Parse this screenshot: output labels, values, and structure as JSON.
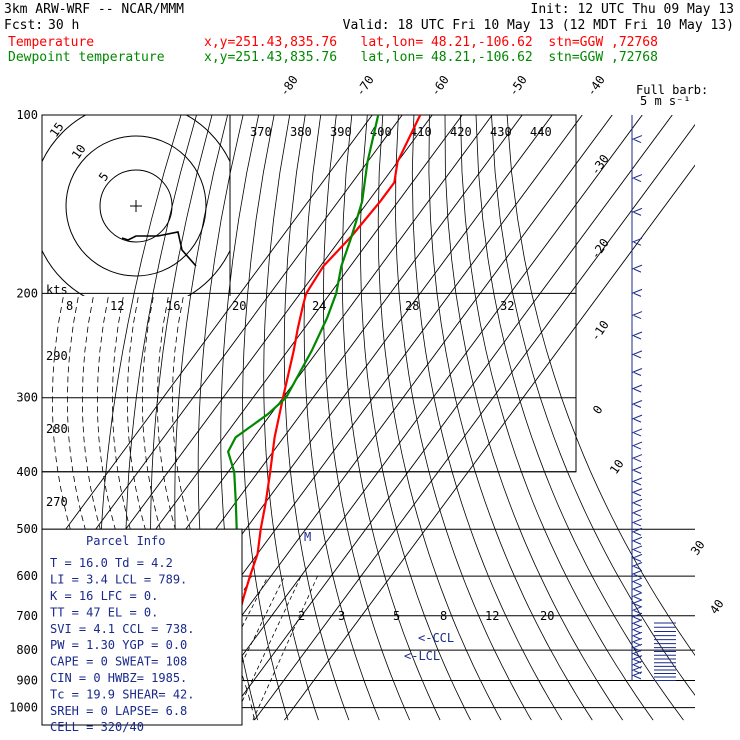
{
  "header": {
    "model": "3km ARW-WRF -- NCAR/MMM",
    "init": "Init: 12 UTC Thu 09 May 13",
    "fcst_label": "Fcst:",
    "fcst_value": "30 h",
    "valid": "Valid: 18 UTC Fri 10 May 13 (12 MDT Fri 10 May 13)",
    "temp_label": "Temperature",
    "temp_info": "x,y=251.43,835.76   lat,lon= 48.21,-106.62  stn=GGW ,72768",
    "dew_label": "Dewpoint temperature",
    "dew_info": "x,y=251.43,835.76   lat,lon= 48.21,-106.62  stn=GGW ,72768"
  },
  "colors": {
    "temperature": "#ff0000",
    "dewpoint": "#008800",
    "wind": "#1a2a8c",
    "parcel": "#1a2a8c"
  },
  "chart_data": {
    "type": "line",
    "title": "",
    "yscale": "log-pressure",
    "ylabel": "",
    "pressure_levels": [
      "100",
      "200",
      "300",
      "400",
      "500",
      "600",
      "700",
      "800",
      "900",
      "1000"
    ],
    "pressure_ticks": [
      100,
      200,
      300,
      400,
      500,
      600,
      700,
      800,
      900,
      1000
    ],
    "isotherms": [
      -80,
      -70,
      -60,
      -50,
      -40,
      -30,
      -20,
      -10,
      0,
      10,
      20,
      30,
      40
    ],
    "isotherm_labels": [
      "-80",
      "-70",
      "-60",
      "-50",
      "-40",
      "-30",
      "-20",
      "-10",
      "0",
      "10",
      "30",
      "40"
    ],
    "theta_labels_top": [
      "370",
      "380",
      "390",
      "400",
      "410",
      "420",
      "430",
      "440"
    ],
    "theta_labels_left": [
      "290",
      "280",
      "270"
    ],
    "mixing_ratio_labels": [
      "2",
      "3",
      "5",
      "8",
      "12",
      "20"
    ],
    "hodograph_speed_labels": [
      "8",
      "12",
      "16",
      "20",
      "24",
      "28",
      "32"
    ],
    "hodograph_unit": "kts",
    "hodograph_rings": [
      "5",
      "10",
      "15"
    ],
    "wind_barb_legend": "Full barb:\n5 m s⁻¹",
    "series": [
      {
        "name": "Temperature",
        "points": [
          [
            916,
            16.0
          ],
          [
            900,
            13
          ],
          [
            870,
            6
          ],
          [
            820,
            3
          ],
          [
            800,
            2.5
          ],
          [
            750,
            1.5
          ],
          [
            700,
            -1
          ],
          [
            650,
            -4
          ],
          [
            600,
            -7
          ],
          [
            550,
            -10
          ],
          [
            500,
            -15
          ],
          [
            450,
            -20
          ],
          [
            400,
            -26
          ],
          [
            350,
            -33
          ],
          [
            300,
            -40
          ],
          [
            250,
            -48
          ],
          [
            230,
            -52
          ],
          [
            210,
            -56
          ],
          [
            200,
            -58
          ],
          [
            180,
            -59
          ],
          [
            160,
            -57
          ],
          [
            140,
            -56
          ],
          [
            130,
            -56
          ],
          [
            120,
            -60
          ],
          [
            100,
            -64
          ]
        ]
      },
      {
        "name": "Dewpoint temperature",
        "points": [
          [
            916,
            4.2
          ],
          [
            900,
            3
          ],
          [
            870,
            1
          ],
          [
            840,
            -2
          ],
          [
            800,
            -5
          ],
          [
            750,
            -7
          ],
          [
            700,
            -10
          ],
          [
            650,
            -13
          ],
          [
            600,
            -16
          ],
          [
            550,
            -19
          ],
          [
            500,
            -23
          ],
          [
            450,
            -30
          ],
          [
            400,
            -38
          ],
          [
            370,
            -45
          ],
          [
            350,
            -46
          ],
          [
            320,
            -41
          ],
          [
            300,
            -39
          ],
          [
            250,
            -42
          ],
          [
            220,
            -45
          ],
          [
            200,
            -48
          ],
          [
            180,
            -53
          ],
          [
            160,
            -57
          ],
          [
            140,
            -62
          ],
          [
            120,
            -70
          ],
          [
            100,
            -78
          ]
        ]
      }
    ],
    "annotations": [
      "<-CCL",
      "<-LCL",
      "M"
    ]
  },
  "parcel_info": {
    "title": "Parcel Info",
    "rows": [
      "T  =    16.0  Td =   4.2",
      "LI =     3.4  LCL =  789.",
      "K  =      16  LFC =    0.",
      "TT =      47  EL  =    0.",
      "SVI =    4.1  CCL =  738.",
      "PW =    1.30  YGP =   0.0",
      "CAPE =     0  SWEAT=  108",
      "CIN =      0  HWBZ= 1985.",
      "Tc =    19.9  SHEAR=  42.",
      "SREH =     0  LAPSE=  6.8",
      "CELL = 320/40"
    ]
  }
}
